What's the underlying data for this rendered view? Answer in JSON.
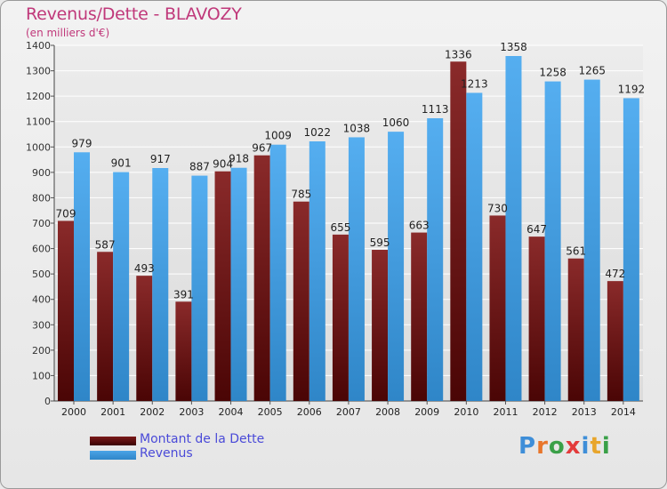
{
  "header": {
    "title": "Revenus/Dette - BLAVOZY",
    "subtitle": "(en milliers d'€)"
  },
  "legend": {
    "debt_label": "Montant de la Dette",
    "revenue_label": "Revenus"
  },
  "logo": {
    "letters": [
      "P",
      "r",
      "o",
      "x",
      "i",
      "t",
      "i"
    ],
    "colors": [
      "#3e8ed8",
      "#e8762b",
      "#3aa048",
      "#e33b3b",
      "#3e8ed8",
      "#e8a52b",
      "#3aa048"
    ]
  },
  "colors": {
    "debt": "#7b1a1a",
    "revenue": "#4aa3e6"
  },
  "chart_data": {
    "type": "bar",
    "title": "Revenus/Dette - BLAVOZY",
    "subtitle": "(en milliers d'€)",
    "categories": [
      "2000",
      "2001",
      "2002",
      "2003",
      "2004",
      "2005",
      "2006",
      "2007",
      "2008",
      "2009",
      "2010",
      "2011",
      "2012",
      "2013",
      "2014"
    ],
    "series": [
      {
        "name": "Montant de la Dette",
        "values": [
          709,
          587,
          493,
          391,
          904,
          967,
          785,
          655,
          595,
          663,
          1336,
          730,
          647,
          561,
          472
        ]
      },
      {
        "name": "Revenus",
        "values": [
          979,
          901,
          917,
          887,
          918,
          1009,
          1022,
          1038,
          1060,
          1113,
          1213,
          1358,
          1258,
          1265,
          1192
        ]
      }
    ],
    "ylim": [
      0,
      1400
    ],
    "yticks": [
      0,
      100,
      200,
      300,
      400,
      500,
      600,
      700,
      800,
      900,
      1000,
      1100,
      1200,
      1300,
      1400
    ],
    "grid": true,
    "legend_position": "bottom-left"
  }
}
